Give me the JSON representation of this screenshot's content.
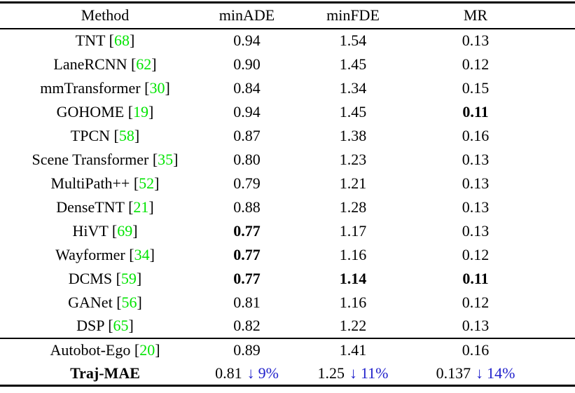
{
  "page": {
    "background": "#ffffff"
  },
  "colors": {
    "citation_green": "#00e400",
    "delta_blue": "#2222cc",
    "rule_black": "#000000",
    "text_black": "#000000"
  },
  "citation_format": {
    "open": "[",
    "close": "]"
  },
  "header": {
    "method": "Method",
    "min_ade": "minADE",
    "min_fde": "minFDE",
    "mr": "MR"
  },
  "sections": [
    {
      "name": "main-methods",
      "rows": [
        {
          "method": "TNT",
          "cite": "68",
          "bold_method": false,
          "cells": [
            {
              "value": "0.94",
              "bold": false
            },
            {
              "value": "1.54",
              "bold": false
            },
            {
              "value": "0.13",
              "bold": false
            }
          ]
        },
        {
          "method": "LaneRCNN",
          "cite": "62",
          "bold_method": false,
          "cells": [
            {
              "value": "0.90",
              "bold": false
            },
            {
              "value": "1.45",
              "bold": false
            },
            {
              "value": "0.12",
              "bold": false
            }
          ]
        },
        {
          "method": "mmTransformer",
          "cite": "30",
          "bold_method": false,
          "cells": [
            {
              "value": "0.84",
              "bold": false
            },
            {
              "value": "1.34",
              "bold": false
            },
            {
              "value": "0.15",
              "bold": false
            }
          ]
        },
        {
          "method": "GOHOME",
          "cite": "19",
          "bold_method": false,
          "cells": [
            {
              "value": "0.94",
              "bold": false
            },
            {
              "value": "1.45",
              "bold": false
            },
            {
              "value": "0.11",
              "bold": true
            }
          ]
        },
        {
          "method": "TPCN",
          "cite": "58",
          "bold_method": false,
          "cells": [
            {
              "value": "0.87",
              "bold": false
            },
            {
              "value": "1.38",
              "bold": false
            },
            {
              "value": "0.16",
              "bold": false
            }
          ]
        },
        {
          "method": "Scene Transformer",
          "cite": "35",
          "bold_method": false,
          "cells": [
            {
              "value": "0.80",
              "bold": false
            },
            {
              "value": "1.23",
              "bold": false
            },
            {
              "value": "0.13",
              "bold": false
            }
          ]
        },
        {
          "method": "MultiPath++",
          "cite": "52",
          "bold_method": false,
          "cells": [
            {
              "value": "0.79",
              "bold": false
            },
            {
              "value": "1.21",
              "bold": false
            },
            {
              "value": "0.13",
              "bold": false
            }
          ]
        },
        {
          "method": "DenseTNT",
          "cite": "21",
          "bold_method": false,
          "cells": [
            {
              "value": "0.88",
              "bold": false
            },
            {
              "value": "1.28",
              "bold": false
            },
            {
              "value": "0.13",
              "bold": false
            }
          ]
        },
        {
          "method": "HiVT",
          "cite": "69",
          "bold_method": false,
          "cells": [
            {
              "value": "0.77",
              "bold": true
            },
            {
              "value": "1.17",
              "bold": false
            },
            {
              "value": "0.13",
              "bold": false
            }
          ]
        },
        {
          "method": "Wayformer",
          "cite": "34",
          "bold_method": false,
          "cells": [
            {
              "value": "0.77",
              "bold": true
            },
            {
              "value": "1.16",
              "bold": false
            },
            {
              "value": "0.12",
              "bold": false
            }
          ]
        },
        {
          "method": "DCMS",
          "cite": "59",
          "bold_method": false,
          "cells": [
            {
              "value": "0.77",
              "bold": true
            },
            {
              "value": "1.14",
              "bold": true
            },
            {
              "value": "0.11",
              "bold": true
            }
          ]
        },
        {
          "method": "GANet",
          "cite": "56",
          "bold_method": false,
          "cells": [
            {
              "value": "0.81",
              "bold": false
            },
            {
              "value": "1.16",
              "bold": false
            },
            {
              "value": "0.12",
              "bold": false
            }
          ]
        },
        {
          "method": "DSP",
          "cite": "65",
          "bold_method": false,
          "cells": [
            {
              "value": "0.82",
              "bold": false
            },
            {
              "value": "1.22",
              "bold": false
            },
            {
              "value": "0.13",
              "bold": false
            }
          ]
        }
      ]
    },
    {
      "name": "final-comparison",
      "rows": [
        {
          "method": "Autobot-Ego",
          "cite": "20",
          "bold_method": false,
          "cells": [
            {
              "value": "0.89",
              "bold": false
            },
            {
              "value": "1.41",
              "bold": false
            },
            {
              "value": "0.16",
              "bold": false
            }
          ]
        },
        {
          "method": "Traj-MAE",
          "cite": null,
          "bold_method": true,
          "cells": [
            {
              "value": "0.81",
              "bold": false,
              "delta_arrow": "↓",
              "delta_pct": "9%"
            },
            {
              "value": "1.25",
              "bold": false,
              "delta_arrow": "↓",
              "delta_pct": "11%"
            },
            {
              "value": "0.137",
              "bold": false,
              "delta_arrow": "↓",
              "delta_pct": "14%"
            }
          ]
        }
      ]
    }
  ]
}
